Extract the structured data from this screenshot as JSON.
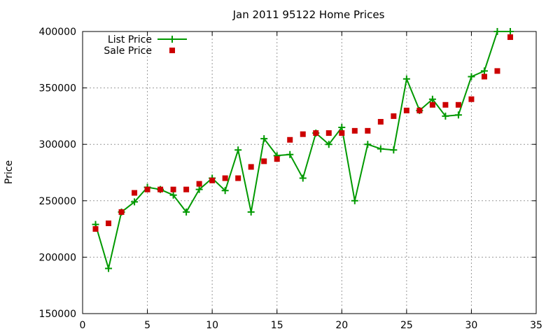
{
  "chart_data": {
    "type": "line",
    "title": "Jan 2011 95122 Home Prices",
    "xlabel": "",
    "ylabel": "Price",
    "xlim": [
      0,
      35
    ],
    "ylim": [
      150000,
      400000
    ],
    "xticks": [
      0,
      5,
      10,
      15,
      20,
      25,
      30,
      35
    ],
    "yticks": [
      150000,
      200000,
      250000,
      300000,
      350000,
      400000
    ],
    "grid": true,
    "legend_position": "top-left",
    "series": [
      {
        "name": "List Price",
        "style": "line-with-plus-markers",
        "color": "#009900",
        "x": [
          1,
          2,
          3,
          4,
          5,
          6,
          7,
          8,
          9,
          10,
          11,
          12,
          13,
          14,
          15,
          16,
          17,
          18,
          19,
          20,
          21,
          22,
          23,
          24,
          25,
          26,
          27,
          28,
          29,
          30,
          31,
          32,
          33
        ],
        "y": [
          229000,
          190000,
          240000,
          249000,
          262000,
          260000,
          255000,
          240000,
          260000,
          270000,
          259000,
          295000,
          240000,
          305000,
          290000,
          291000,
          270000,
          310000,
          300000,
          315000,
          250000,
          300000,
          296000,
          295000,
          358000,
          330000,
          340000,
          325000,
          326000,
          360000,
          365000,
          400000,
          400000
        ]
      },
      {
        "name": "Sale Price",
        "style": "square-markers",
        "color": "#cc0000",
        "x": [
          1,
          2,
          3,
          4,
          5,
          6,
          7,
          8,
          9,
          10,
          11,
          12,
          13,
          14,
          15,
          16,
          17,
          18,
          19,
          20,
          21,
          22,
          23,
          24,
          25,
          26,
          27,
          28,
          29,
          30,
          31,
          32,
          33
        ],
        "y": [
          225000,
          230000,
          240000,
          257000,
          260000,
          260000,
          260000,
          260000,
          265000,
          268000,
          270000,
          270000,
          280000,
          285000,
          287000,
          304000,
          309000,
          310000,
          310000,
          310000,
          312000,
          312000,
          320000,
          325000,
          330000,
          330000,
          335000,
          335000,
          335000,
          340000,
          360000,
          365000,
          395000
        ]
      }
    ]
  }
}
